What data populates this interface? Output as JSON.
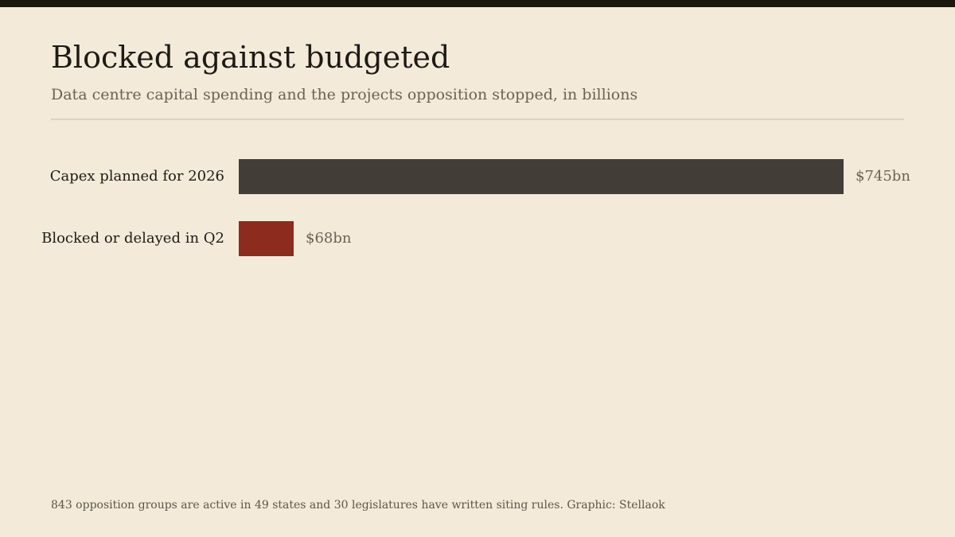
{
  "chart_data": {
    "type": "bar",
    "orientation": "horizontal",
    "title": "Blocked against budgeted",
    "subtitle": "Data centre capital spending and the projects opposition stopped, in billions",
    "categories": [
      "Capex planned for 2026",
      "Blocked or delayed in Q2"
    ],
    "values": [
      745,
      68
    ],
    "value_labels": [
      "$745bn",
      "$68bn"
    ],
    "colors": [
      "#433d37",
      "#8c2b1e"
    ],
    "unit": "billions",
    "grid": false,
    "legend": "none"
  },
  "footnote": "843 opposition groups are active in 49 states and 30 legislatures have written siting rules. Graphic: Stellaok"
}
